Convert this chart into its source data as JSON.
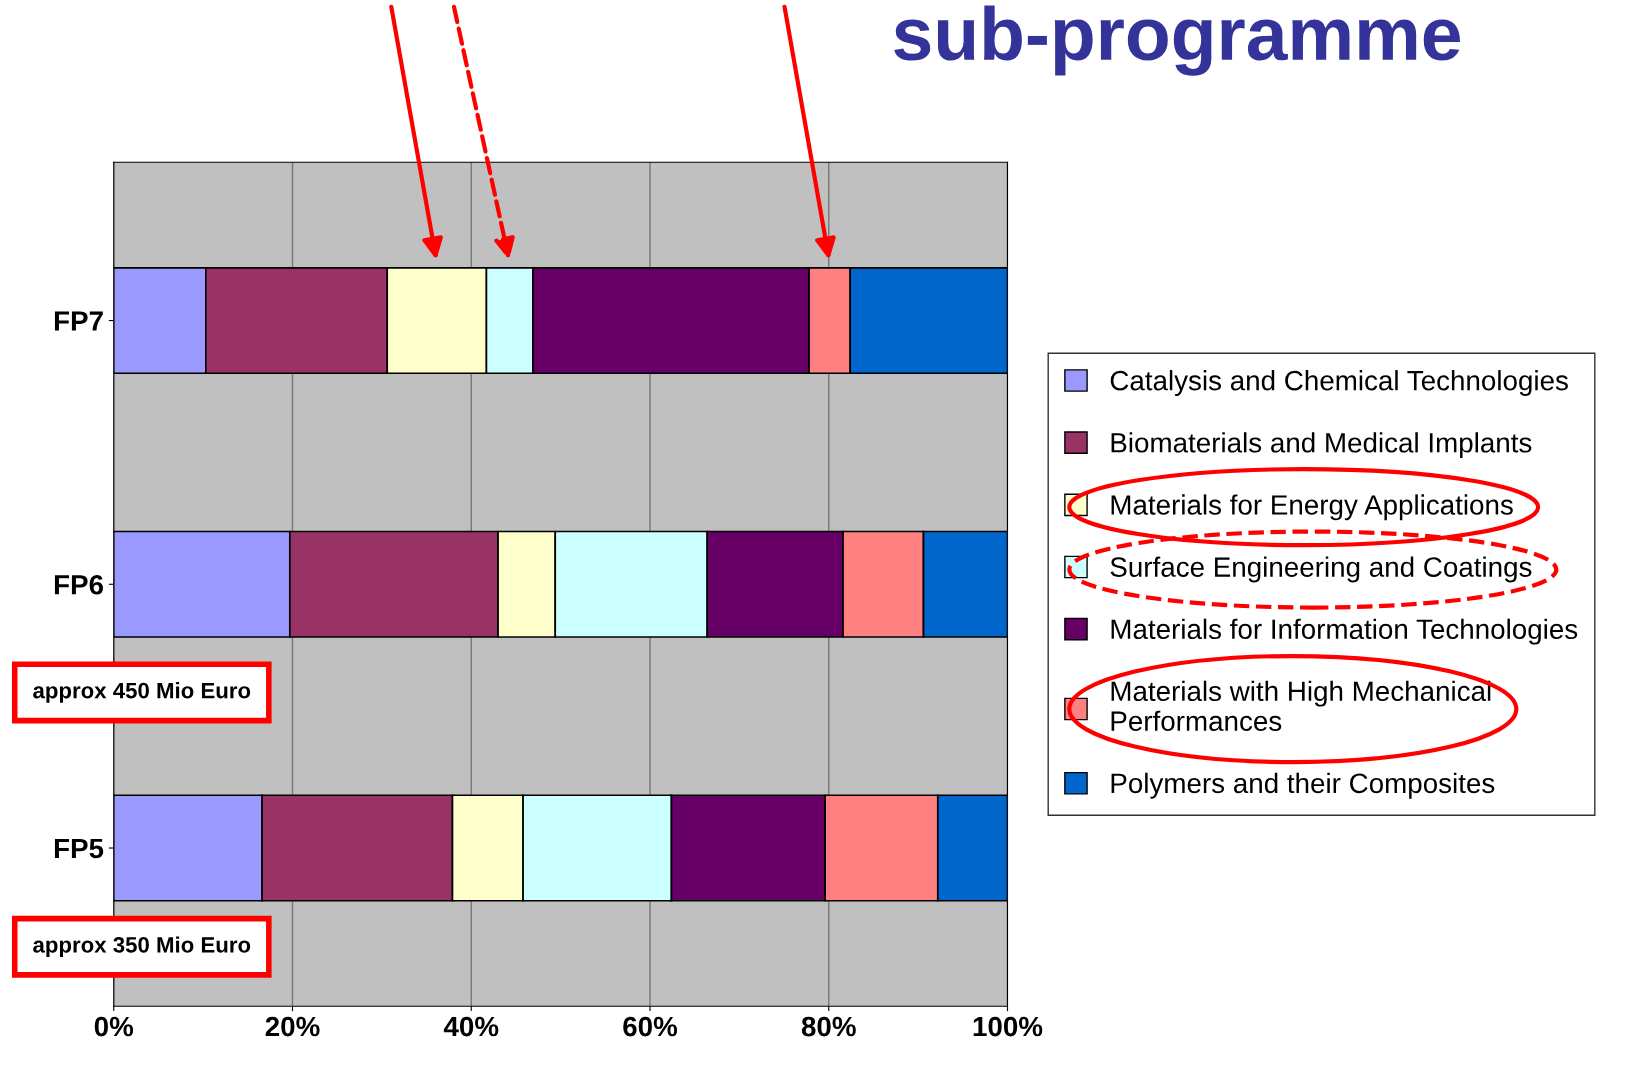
{
  "chart_data": {
    "type": "bar",
    "orientation": "horizontal",
    "stacked": true,
    "title": "sub-programme",
    "categories": [
      "FP7",
      "FP6",
      "FP5"
    ],
    "series": [
      {
        "name": "Catalysis and Chemical Technologies",
        "color": "#9999ff",
        "values": [
          10.3,
          19.7,
          16.6
        ]
      },
      {
        "name": "Biomaterials and Medical Implants",
        "color": "#993366",
        "values": [
          20.3,
          23.3,
          21.3
        ]
      },
      {
        "name": "Materials for Energy Applications",
        "color": "#ffffcc",
        "values": [
          11.1,
          6.4,
          7.9
        ]
      },
      {
        "name": "Surface Engineering and Coatings",
        "color": "#ccffff",
        "values": [
          5.2,
          17.0,
          16.6
        ]
      },
      {
        "name": "Materials for Information Technologies",
        "color": "#660066",
        "values": [
          30.9,
          15.2,
          17.2
        ]
      },
      {
        "name": "Materials with High Mechanical\nPerformances",
        "color": "#ff8080",
        "values": [
          4.6,
          9.0,
          12.6
        ]
      },
      {
        "name": "Polymers and their Composites",
        "color": "#0066cc",
        "values": [
          17.6,
          9.4,
          7.8
        ]
      }
    ],
    "xlim": [
      0,
      100
    ],
    "xticks": [
      {
        "value": 0,
        "label": "0%"
      },
      {
        "value": 20,
        "label": "20%"
      },
      {
        "value": 40,
        "label": "40%"
      },
      {
        "value": 60,
        "label": "60%"
      },
      {
        "value": 80,
        "label": "80%"
      },
      {
        "value": 100,
        "label": "100%"
      }
    ],
    "grid": "x",
    "legend": "right",
    "annotations": [
      "approx 450 Mio Euro",
      "approx 350 Mio Euro"
    ]
  }
}
